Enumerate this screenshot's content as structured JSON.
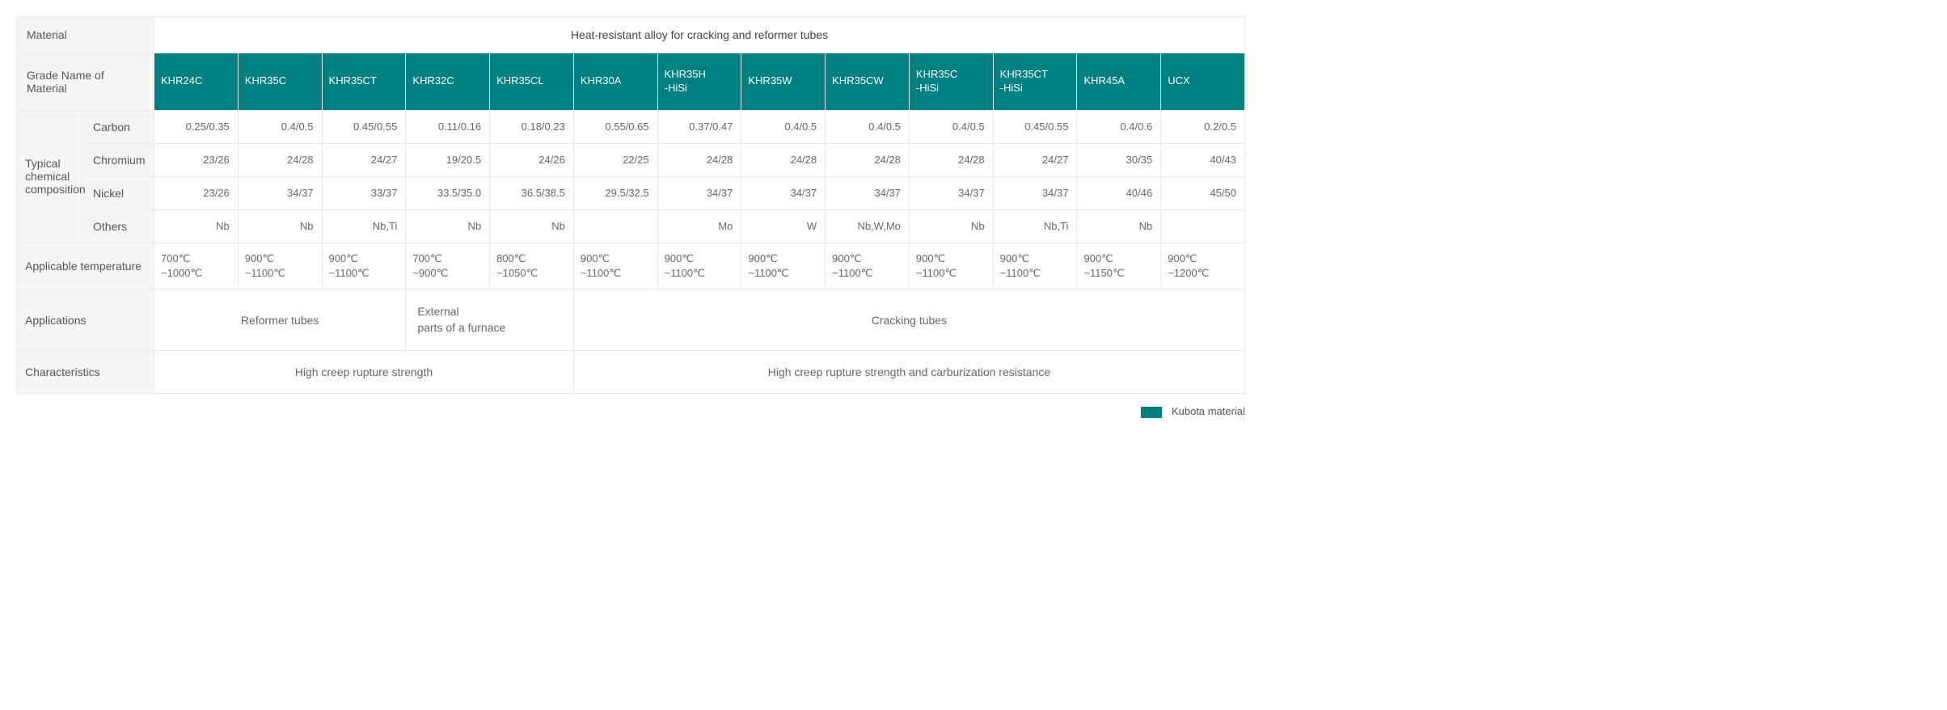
{
  "header": {
    "material_label": "Material",
    "material_span": "Heat-resistant alloy for cracking and reformer tubes",
    "grade_label": "Grade Name of Material",
    "grades": [
      "KHR24C",
      "KHR35C",
      "KHR35CT",
      "KHR32C",
      "KHR35CL",
      "KHR30A",
      "KHR35H\n-HiSi",
      "KHR35W",
      "KHR35CW",
      "KHR35C\n-HiSi",
      "KHR35CT\n-HiSi",
      "KHR45A",
      "UCX"
    ]
  },
  "composition": {
    "group_label": "Typical chemical composition",
    "rows": [
      {
        "label": "Carbon",
        "values": [
          "0.25/0.35",
          "0.4/0.5",
          "0.45/0.55",
          "0.11/0.16",
          "0.18/0.23",
          "0.55/0.65",
          "0.37/0.47",
          "0.4/0.5",
          "0.4/0.5",
          "0.4/0.5",
          "0.45/0.55",
          "0.4/0.6",
          "0.2/0.5"
        ]
      },
      {
        "label": "Chromium",
        "values": [
          "23/26",
          "24/28",
          "24/27",
          "19/20.5",
          "24/26",
          "22/25",
          "24/28",
          "24/28",
          "24/28",
          "24/28",
          "24/27",
          "30/35",
          "40/43"
        ]
      },
      {
        "label": "Nickel",
        "values": [
          "23/26",
          "34/37",
          "33/37",
          "33.5/35.0",
          "36.5/38.5",
          "29.5/32.5",
          "34/37",
          "34/37",
          "34/37",
          "34/37",
          "34/37",
          "40/46",
          "45/50"
        ]
      },
      {
        "label": "Others",
        "values": [
          "Nb",
          "Nb",
          "Nb,Ti",
          "Nb",
          "Nb",
          "",
          "Mo",
          "W",
          "Nb,W,Mo",
          "Nb",
          "Nb,Ti",
          "Nb",
          ""
        ]
      }
    ]
  },
  "temperature": {
    "label": "Applicable temperature",
    "values": [
      "700℃\n~1000℃",
      "900℃\n~1100℃",
      "900℃\n~1100℃",
      "700℃\n~900℃",
      "800℃\n~1050℃",
      "900℃\n~1100℃",
      "900℃\n~1100℃",
      "900℃\n~1100℃",
      "900℃\n~1100℃",
      "900℃\n~1100℃",
      "900℃\n~1100℃",
      "900℃\n~1150℃",
      "900℃\n~1200℃"
    ]
  },
  "applications": {
    "label": "Applications",
    "spans": [
      {
        "text": "Reformer tubes",
        "cols": 3,
        "align": "center"
      },
      {
        "text": "External\nparts of a furnace",
        "cols": 2,
        "align": "left"
      },
      {
        "text": "Cracking tubes",
        "cols": 8,
        "align": "center"
      }
    ]
  },
  "characteristics": {
    "label": "Characteristics",
    "spans": [
      {
        "text": "High creep rupture strength",
        "cols": 5,
        "align": "center"
      },
      {
        "text": "High creep rupture strength and carburization resistance",
        "cols": 8,
        "align": "center"
      }
    ]
  },
  "legend": {
    "label": "Kubota material",
    "swatch_color": "#008080"
  },
  "style": {
    "grade_bg": "#008080",
    "grade_fg": "#ffffff",
    "label_bg": "#f5f5f5",
    "border_color": "#e8e8e8",
    "body_fg": "#555555",
    "font_family": "Arial"
  }
}
